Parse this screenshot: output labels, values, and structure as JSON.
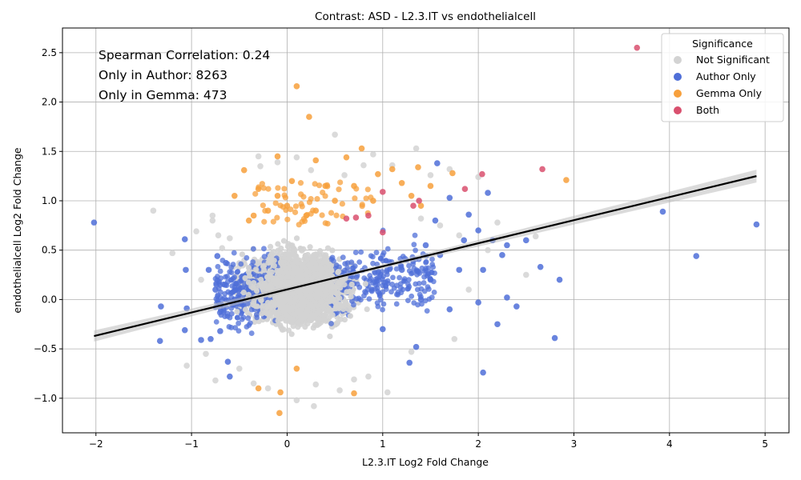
{
  "chart_data": {
    "type": "scatter",
    "title": "Contrast: ASD - L2.3.IT vs endothelialcell",
    "xlabel": "L2.3.IT Log2 Fold Change",
    "ylabel": "endothelialcell Log2 Fold Change",
    "xlim": [
      -2.35,
      5.25
    ],
    "ylim": [
      -1.35,
      2.75
    ],
    "x_ticks": [
      -2,
      -1,
      0,
      1,
      2,
      3,
      4,
      5
    ],
    "y_ticks": [
      -1.0,
      -0.5,
      0.0,
      0.5,
      1.0,
      1.5,
      2.0,
      2.5
    ],
    "x_tick_labels": [
      "−2",
      "−1",
      "0",
      "1",
      "2",
      "3",
      "4",
      "5"
    ],
    "y_tick_labels": [
      "−1.0",
      "−0.5",
      "0.0",
      "0.5",
      "1.0",
      "1.5",
      "2.0",
      "2.5"
    ],
    "grid": true,
    "annotations": [
      "Spearman Correlation: 0.24",
      "Only in Author: 8263",
      "Only in Gemma: 473"
    ],
    "legend": {
      "title": "Significance",
      "placement": "top-right",
      "entries": [
        "Not Significant",
        "Author Only",
        "Gemma Only",
        "Both"
      ]
    },
    "regression_line": {
      "x": [
        -2.02,
        4.91
      ],
      "y": [
        -0.37,
        1.25
      ]
    },
    "series": [
      {
        "name": "Not Significant",
        "color": "#d3d3d3",
        "points": [
          [
            -1.4,
            0.9
          ],
          [
            -1.2,
            0.47
          ],
          [
            -1.05,
            -0.67
          ],
          [
            -0.95,
            0.69
          ],
          [
            -0.78,
            0.85
          ],
          [
            -0.78,
            0.8
          ],
          [
            -0.75,
            -0.82
          ],
          [
            -0.72,
            0.65
          ],
          [
            -0.68,
            0.52
          ],
          [
            -0.6,
            0.62
          ],
          [
            -0.3,
            1.45
          ],
          [
            -0.28,
            1.35
          ],
          [
            -0.1,
            1.39
          ],
          [
            0.1,
            1.44
          ],
          [
            0.25,
            1.31
          ],
          [
            0.5,
            1.67
          ],
          [
            0.6,
            1.26
          ],
          [
            0.8,
            1.36
          ],
          [
            0.9,
            1.47
          ],
          [
            1.1,
            1.36
          ],
          [
            1.35,
            1.53
          ],
          [
            1.5,
            1.26
          ],
          [
            1.7,
            1.32
          ],
          [
            2.0,
            1.24
          ],
          [
            2.5,
            0.25
          ],
          [
            2.6,
            0.64
          ],
          [
            -0.2,
            -0.9
          ],
          [
            0.1,
            -1.02
          ],
          [
            0.28,
            -1.08
          ],
          [
            0.55,
            -0.92
          ],
          [
            0.85,
            -0.78
          ],
          [
            1.05,
            -0.94
          ],
          [
            0.7,
            -0.81
          ],
          [
            0.3,
            -0.86
          ],
          [
            -0.35,
            -0.85
          ],
          [
            1.3,
            -0.53
          ],
          [
            1.75,
            -0.4
          ],
          [
            1.4,
            0.82
          ],
          [
            1.6,
            0.75
          ],
          [
            1.8,
            0.65
          ],
          [
            2.2,
            0.78
          ],
          [
            -0.85,
            -0.55
          ],
          [
            -0.5,
            -0.7
          ],
          [
            -0.9,
            0.2
          ],
          [
            1.9,
            0.1
          ],
          [
            2.1,
            0.5
          ]
        ]
      },
      {
        "name": "Author Only",
        "color": "#4f6fd8",
        "points": [
          [
            -2.02,
            0.78
          ],
          [
            -1.33,
            -0.42
          ],
          [
            -1.32,
            -0.07
          ],
          [
            -1.07,
            0.61
          ],
          [
            -1.06,
            0.3
          ],
          [
            -1.05,
            -0.09
          ],
          [
            -1.07,
            -0.31
          ],
          [
            -0.82,
            0.3
          ],
          [
            -0.73,
            0.44
          ],
          [
            -0.64,
            0.37
          ],
          [
            -0.62,
            -0.63
          ],
          [
            -0.6,
            -0.78
          ],
          [
            -0.8,
            -0.4
          ],
          [
            -0.9,
            -0.41
          ],
          [
            -0.7,
            -0.32
          ],
          [
            -0.75,
            0.1
          ],
          [
            -0.65,
            0.15
          ],
          [
            1.57,
            1.38
          ],
          [
            2.1,
            1.08
          ],
          [
            1.7,
            1.03
          ],
          [
            1.85,
            0.6
          ],
          [
            1.9,
            0.86
          ],
          [
            2.0,
            0.7
          ],
          [
            2.15,
            0.6
          ],
          [
            2.3,
            0.55
          ],
          [
            2.5,
            0.6
          ],
          [
            2.65,
            0.33
          ],
          [
            2.85,
            0.2
          ],
          [
            2.8,
            -0.39
          ],
          [
            3.93,
            0.89
          ],
          [
            4.28,
            0.44
          ],
          [
            4.91,
            0.76
          ],
          [
            2.05,
            -0.74
          ],
          [
            2.4,
            -0.07
          ],
          [
            2.3,
            0.02
          ],
          [
            2.2,
            -0.25
          ],
          [
            2.0,
            -0.03
          ],
          [
            1.5,
            0.2
          ],
          [
            1.4,
            0.0
          ],
          [
            1.6,
            0.45
          ],
          [
            1.2,
            0.3
          ],
          [
            1.0,
            -0.3
          ],
          [
            1.28,
            -0.64
          ],
          [
            1.35,
            -0.48
          ],
          [
            1.7,
            -0.1
          ],
          [
            1.8,
            0.3
          ],
          [
            2.25,
            0.45
          ],
          [
            2.05,
            0.3
          ],
          [
            1.45,
            0.55
          ],
          [
            1.55,
            0.8
          ]
        ]
      },
      {
        "name": "Gemma Only",
        "color": "#f7a03c",
        "points": [
          [
            0.1,
            2.16
          ],
          [
            0.23,
            1.85
          ],
          [
            -0.1,
            1.45
          ],
          [
            -0.45,
            1.31
          ],
          [
            0.3,
            1.41
          ],
          [
            0.62,
            1.44
          ],
          [
            0.78,
            1.53
          ],
          [
            0.95,
            1.27
          ],
          [
            1.1,
            1.32
          ],
          [
            1.37,
            1.34
          ],
          [
            1.3,
            1.05
          ],
          [
            1.5,
            1.15
          ],
          [
            1.73,
            1.28
          ],
          [
            2.92,
            1.21
          ],
          [
            -0.55,
            1.05
          ],
          [
            -0.3,
            1.12
          ],
          [
            0.05,
            1.2
          ],
          [
            0.4,
            1.15
          ],
          [
            -0.1,
            1.05
          ],
          [
            0.7,
            1.15
          ],
          [
            1.2,
            1.18
          ],
          [
            -0.3,
            -0.9
          ],
          [
            -0.08,
            -1.15
          ],
          [
            -0.07,
            -0.94
          ],
          [
            0.1,
            -0.7
          ],
          [
            0.7,
            -0.95
          ],
          [
            0.2,
            0.85
          ],
          [
            -0.2,
            0.9
          ],
          [
            0.5,
            1.0
          ],
          [
            -0.4,
            0.8
          ],
          [
            0.9,
            1.0
          ],
          [
            1.4,
            0.95
          ],
          [
            0.3,
            0.9
          ],
          [
            0.0,
            0.95
          ],
          [
            -0.35,
            0.85
          ]
        ]
      },
      {
        "name": "Both",
        "color": "#d9506e",
        "points": [
          [
            3.66,
            2.55
          ],
          [
            2.67,
            1.32
          ],
          [
            2.04,
            1.27
          ],
          [
            1.86,
            1.12
          ],
          [
            1.0,
            1.09
          ],
          [
            1.38,
            1.0
          ],
          [
            1.32,
            0.95
          ],
          [
            0.62,
            0.82
          ],
          [
            0.72,
            0.83
          ],
          [
            1.0,
            0.68
          ],
          [
            0.85,
            0.85
          ]
        ]
      }
    ]
  }
}
